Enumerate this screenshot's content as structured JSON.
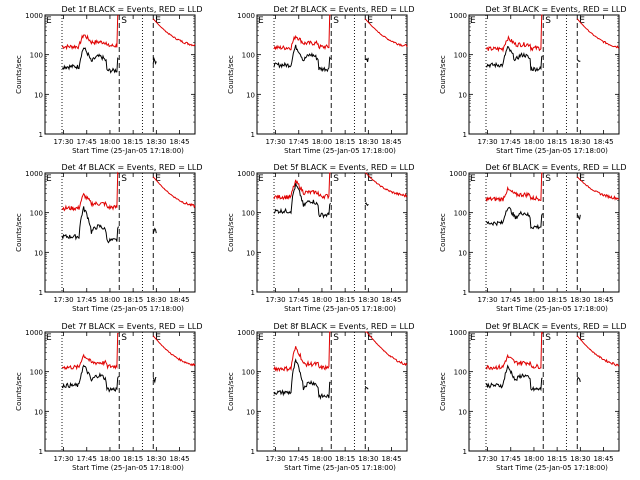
{
  "chart_data": {
    "type": "line",
    "layout": "3x3 grid of panels",
    "shared": {
      "ylabel": "Counts/sec",
      "xlabel": "Start Time (25-Jan-05 17:18:00)",
      "y_scale": "log",
      "ylim": [
        1,
        1000
      ],
      "y_ticks": [
        1,
        10,
        100,
        1000
      ],
      "xlim": [
        "17:18",
        "18:55"
      ],
      "x_ticks": [
        "17:30",
        "17:45",
        "18:00",
        "18:15",
        "18:30",
        "18:45"
      ],
      "series_colors": {
        "events": "#000000",
        "lld": "#e00000"
      },
      "vertical_markers": [
        {
          "time": "17:29",
          "style": "dotted",
          "label": ""
        },
        {
          "time": "18:06",
          "style": "dashed",
          "label": "S"
        },
        {
          "time": "18:21",
          "style": "dotted",
          "label": ""
        },
        {
          "time": "18:28",
          "style": "dashed",
          "label": "E"
        }
      ],
      "start_marker_label": "E"
    },
    "panels": [
      {
        "title": "Det 1f BLACK = Events, RED = LLD",
        "lld_base": 160,
        "lld_peak": 320,
        "ev_base": 50,
        "ev_peak": 150,
        "flare": 1.0
      },
      {
        "title": "Det 2f BLACK = Events, RED = LLD",
        "lld_base": 150,
        "lld_peak": 300,
        "ev_base": 55,
        "ev_peak": 160,
        "flare": 1.0
      },
      {
        "title": "Det 3f BLACK = Events, RED = LLD",
        "lld_base": 140,
        "lld_peak": 260,
        "ev_base": 55,
        "ev_peak": 150,
        "flare": 1.0
      },
      {
        "title": "Det 4f BLACK = Events, RED = LLD",
        "lld_base": 130,
        "lld_peak": 280,
        "ev_base": 25,
        "ev_peak": 130,
        "flare": 1.0
      },
      {
        "title": "Det 5f BLACK = Events, RED = LLD",
        "lld_base": 250,
        "lld_peak": 600,
        "ev_base": 110,
        "ev_peak": 500,
        "flare": 1.3
      },
      {
        "title": "Det 6f BLACK = Events, RED = LLD",
        "lld_base": 220,
        "lld_peak": 380,
        "ev_base": 55,
        "ev_peak": 140,
        "flare": 1.0
      },
      {
        "title": "Det 7f BLACK = Events, RED = LLD",
        "lld_base": 130,
        "lld_peak": 260,
        "ev_base": 45,
        "ev_peak": 140,
        "flare": 1.0
      },
      {
        "title": "Det 8f BLACK = Events, RED = LLD",
        "lld_base": 120,
        "lld_peak": 400,
        "ev_base": 30,
        "ev_peak": 180,
        "flare": 1.4
      },
      {
        "title": "Det 9f BLACK = Events, RED = LLD",
        "lld_base": 130,
        "lld_peak": 240,
        "ev_base": 45,
        "ev_peak": 130,
        "flare": 1.0
      }
    ]
  }
}
